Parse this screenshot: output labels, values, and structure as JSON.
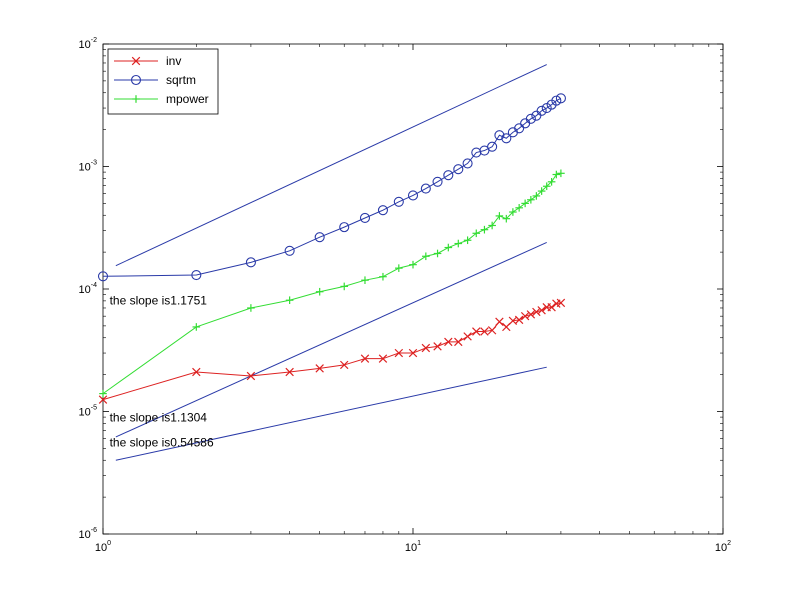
{
  "chart_data": {
    "type": "line",
    "xscale": "log",
    "yscale": "log",
    "xlim": [
      1,
      100
    ],
    "ylim": [
      1e-06,
      0.01
    ],
    "x_ticks": [
      {
        "value": 1,
        "base": "10",
        "exp": "0"
      },
      {
        "value": 10,
        "base": "10",
        "exp": "1"
      },
      {
        "value": 100,
        "base": "10",
        "exp": "2"
      }
    ],
    "y_ticks": [
      {
        "value": 1e-06,
        "base": "10",
        "exp": "-6"
      },
      {
        "value": 1e-05,
        "base": "10",
        "exp": "-5"
      },
      {
        "value": 0.0001,
        "base": "10",
        "exp": "-4"
      },
      {
        "value": 0.001,
        "base": "10",
        "exp": "-3"
      },
      {
        "value": 0.01,
        "base": "10",
        "exp": "-2"
      }
    ],
    "grid": false,
    "legend_position": "top-left",
    "x": [
      1,
      2,
      3,
      4,
      5,
      6,
      7,
      8,
      9,
      10,
      11,
      12,
      13,
      14,
      15,
      16,
      17,
      18,
      19,
      20,
      21,
      22,
      23,
      24,
      25,
      26,
      27,
      28,
      29,
      30
    ],
    "series": [
      {
        "name": "inv",
        "color": "#dd2222",
        "marker": "x",
        "values": [
          1.25e-05,
          2.1e-05,
          1.95e-05,
          2.1e-05,
          2.25e-05,
          2.4e-05,
          2.7e-05,
          2.7e-05,
          3e-05,
          3e-05,
          3.3e-05,
          3.4e-05,
          3.7e-05,
          3.7e-05,
          4.1e-05,
          4.5e-05,
          4.5e-05,
          4.6e-05,
          5.4e-05,
          4.9e-05,
          5.5e-05,
          5.6e-05,
          6e-05,
          6.2e-05,
          6.5e-05,
          6.7e-05,
          7.1e-05,
          7.1e-05,
          7.6e-05,
          7.7e-05
        ]
      },
      {
        "name": "sqrtm",
        "color": "#2a3aa8",
        "marker": "o",
        "values": [
          0.000127,
          0.00013,
          0.000165,
          0.000205,
          0.000265,
          0.00032,
          0.00038,
          0.00044,
          0.000515,
          0.00058,
          0.00066,
          0.00075,
          0.00085,
          0.00095,
          0.00106,
          0.0013,
          0.00135,
          0.00145,
          0.0018,
          0.0017,
          0.0019,
          0.00205,
          0.00225,
          0.00245,
          0.0026,
          0.00285,
          0.003,
          0.0032,
          0.00345,
          0.0036
        ]
      },
      {
        "name": "mpower",
        "color": "#33dd33",
        "marker": "+",
        "values": [
          1.4e-05,
          4.9e-05,
          7e-05,
          8.1e-05,
          9.5e-05,
          0.000105,
          0.000118,
          0.000126,
          0.000148,
          0.000158,
          0.000185,
          0.000195,
          0.000218,
          0.000235,
          0.00025,
          0.000285,
          0.000305,
          0.00033,
          0.000395,
          0.000375,
          0.000425,
          0.00046,
          0.0005,
          0.000535,
          0.000575,
          0.00063,
          0.00069,
          0.00075,
          0.00086,
          0.00088
        ]
      }
    ],
    "reference_lines": [
      {
        "x": [
          1.1,
          27
        ],
        "y": [
          0.000155,
          0.0068
        ],
        "color": "#2a3aa8"
      },
      {
        "x": [
          1.1,
          27
        ],
        "y": [
          6.2e-06,
          0.00024
        ],
        "color": "#2a3aa8"
      },
      {
        "x": [
          1.1,
          27
        ],
        "y": [
          4e-06,
          2.3e-05
        ],
        "color": "#2a3aa8"
      }
    ],
    "annotations": [
      {
        "text": "the slope is1.1751",
        "x": 1.05,
        "y": 7.5e-05
      },
      {
        "text": "the slope is1.1304",
        "x": 1.05,
        "y": 8.3e-06
      },
      {
        "text": "the slope is0.54586",
        "x": 1.05,
        "y": 5.2e-06
      }
    ]
  }
}
